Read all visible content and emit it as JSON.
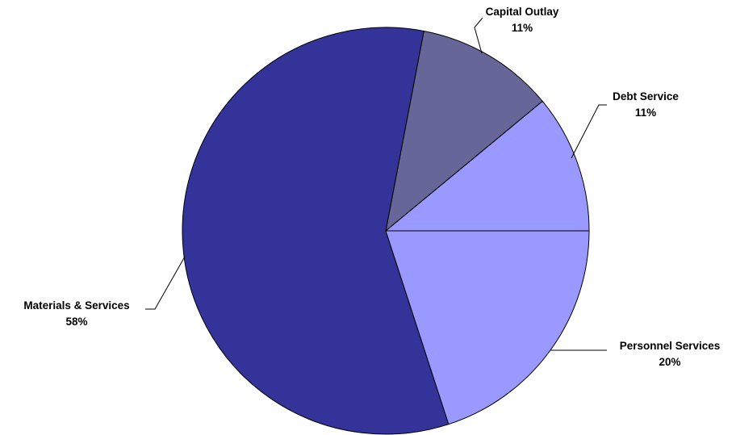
{
  "chart_data": {
    "type": "pie",
    "title": "",
    "start_angle_deg": 0,
    "direction": "counterclockwise",
    "slices": [
      {
        "name": "Debt Service",
        "value": 11,
        "label": "11%",
        "color": "#9999ff"
      },
      {
        "name": "Capital Outlay",
        "value": 11,
        "label": "11%",
        "color": "#666699"
      },
      {
        "name": "Materials & Services",
        "value": 58,
        "label": "58%",
        "color": "#333399"
      },
      {
        "name": "Personnel Services",
        "value": 20,
        "label": "20%",
        "color": "#9999ff"
      }
    ],
    "legend": "none",
    "outline_color": "#000000"
  }
}
